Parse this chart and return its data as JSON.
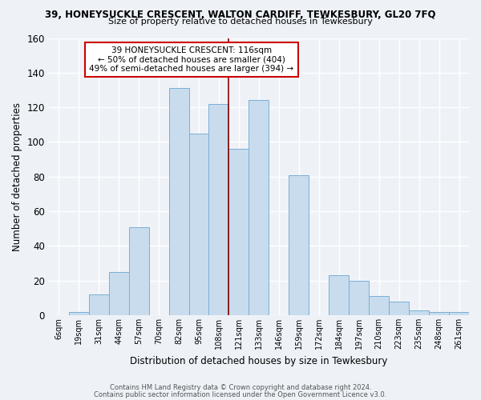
{
  "title_line1": "39, HONEYSUCKLE CRESCENT, WALTON CARDIFF, TEWKESBURY, GL20 7FQ",
  "title_line2": "Size of property relative to detached houses in Tewkesbury",
  "xlabel": "Distribution of detached houses by size in Tewkesbury",
  "ylabel": "Number of detached properties",
  "bin_labels": [
    "6sqm",
    "19sqm",
    "31sqm",
    "44sqm",
    "57sqm",
    "70sqm",
    "82sqm",
    "95sqm",
    "108sqm",
    "121sqm",
    "133sqm",
    "146sqm",
    "159sqm",
    "172sqm",
    "184sqm",
    "197sqm",
    "210sqm",
    "223sqm",
    "235sqm",
    "248sqm",
    "261sqm"
  ],
  "bar_heights": [
    0,
    2,
    12,
    25,
    51,
    0,
    131,
    105,
    122,
    96,
    124,
    0,
    81,
    0,
    23,
    20,
    11,
    8,
    3,
    2,
    2
  ],
  "bar_color": "#c8dced",
  "bar_edge_color": "#7aafd4",
  "property_line_color": "#8b0000",
  "annotation_line1": "39 HONEYSUCKLE CRESCENT: 116sqm",
  "annotation_line2": "← 50% of detached houses are smaller (404)",
  "annotation_line3": "49% of semi-detached houses are larger (394) →",
  "annotation_box_color": "#ffffff",
  "annotation_box_edge_color": "#cc0000",
  "footnote1": "Contains HM Land Registry data © Crown copyright and database right 2024.",
  "footnote2": "Contains public sector information licensed under the Open Government Licence v3.0.",
  "ylim": [
    0,
    160
  ],
  "yticks": [
    0,
    20,
    40,
    60,
    80,
    100,
    120,
    140,
    160
  ],
  "background_color": "#eef2f7",
  "plot_background_color": "#eef2f7",
  "prop_bar_index": 8.5
}
